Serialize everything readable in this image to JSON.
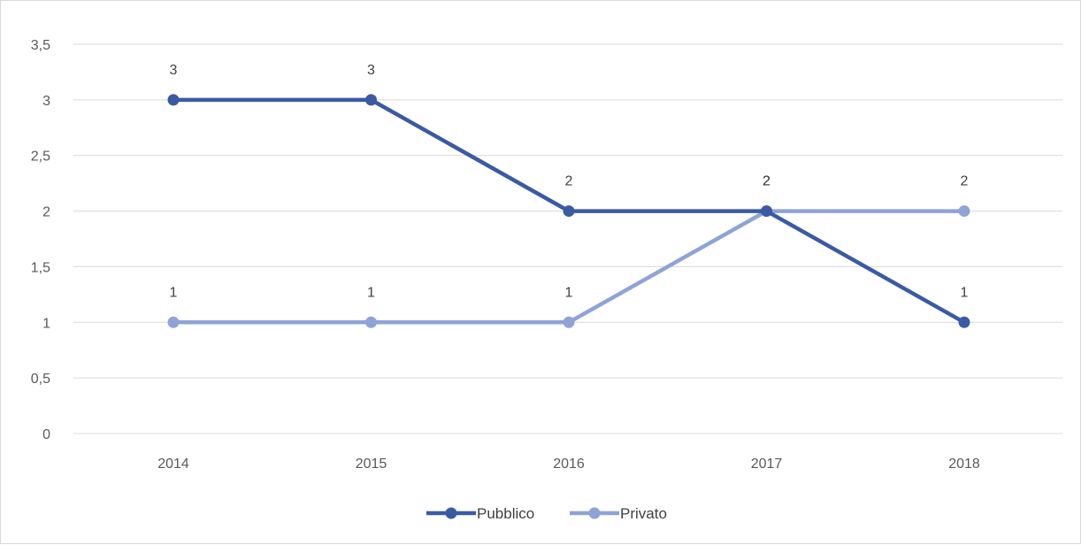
{
  "chart_data": {
    "type": "line",
    "title": "",
    "xlabel": "",
    "ylabel": "",
    "categories": [
      "2014",
      "2015",
      "2016",
      "2017",
      "2018"
    ],
    "ylim": [
      0,
      3.5
    ],
    "yticks": [
      0,
      0.5,
      1,
      1.5,
      2,
      2.5,
      3,
      3.5
    ],
    "ytick_labels": [
      "0",
      "0,5",
      "1",
      "1,5",
      "2",
      "2,5",
      "3",
      "3,5"
    ],
    "grid": true,
    "legend_position": "bottom",
    "series": [
      {
        "name": "Pubblico",
        "values": [
          3,
          3,
          2,
          2,
          1
        ],
        "color": "#3a5ba3"
      },
      {
        "name": "Privato",
        "values": [
          1,
          1,
          1,
          2,
          2
        ],
        "color": "#8ea3d6"
      }
    ]
  }
}
